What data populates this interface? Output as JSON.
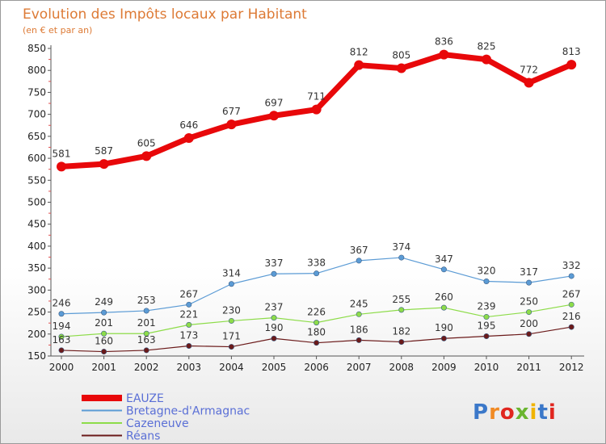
{
  "chart_data": {
    "type": "line",
    "title": "Evolution des Impôts locaux par Habitant",
    "subtitle": "(en € et par an)",
    "xlabel": "",
    "ylabel": "",
    "ylim": [
      150,
      850
    ],
    "yticks": [
      150,
      200,
      250,
      300,
      350,
      400,
      450,
      500,
      550,
      600,
      650,
      700,
      750,
      800,
      850
    ],
    "categories": [
      "2000",
      "2001",
      "2002",
      "2003",
      "2004",
      "2005",
      "2006",
      "2007",
      "2008",
      "2009",
      "2010",
      "2011",
      "2012"
    ],
    "series": [
      {
        "name": "EAUZE",
        "color": "#e8080a",
        "values": [
          581,
          587,
          605,
          646,
          677,
          697,
          711,
          812,
          805,
          836,
          825,
          772,
          813
        ]
      },
      {
        "name": "Bretagne-d'Armagnac",
        "color": "#5b9bd5",
        "values": [
          246,
          249,
          253,
          267,
          314,
          337,
          338,
          367,
          374,
          347,
          320,
          317,
          332
        ]
      },
      {
        "name": "Cazeneuve",
        "color": "#8ddc49",
        "values": [
          194,
          201,
          201,
          221,
          230,
          237,
          226,
          245,
          255,
          260,
          239,
          250,
          267
        ]
      },
      {
        "name": "Réans",
        "color": "#6b1a1a",
        "values": [
          163,
          160,
          163,
          173,
          171,
          190,
          180,
          186,
          182,
          190,
          195,
          200,
          216
        ]
      }
    ],
    "legend": "bottom-left",
    "grid": false
  },
  "brand": {
    "text": "Proxiti"
  }
}
